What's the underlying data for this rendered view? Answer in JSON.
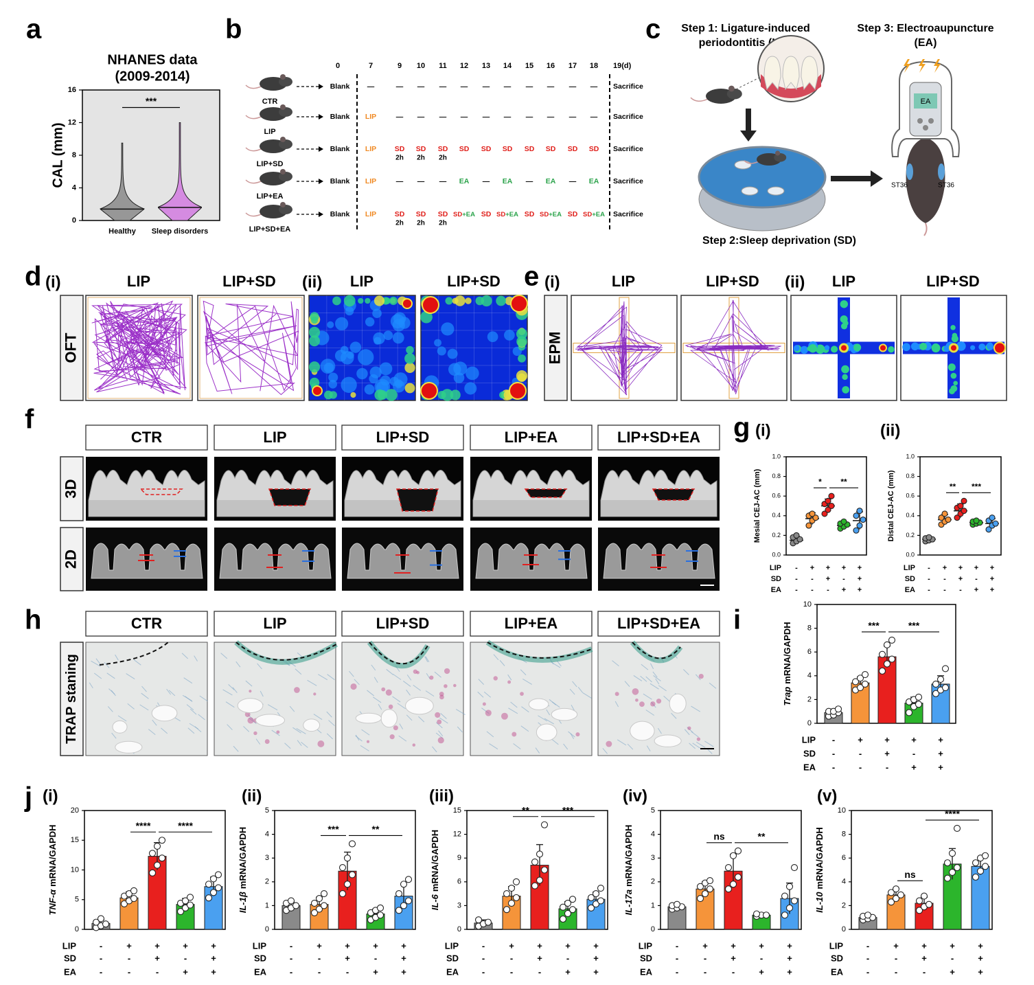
{
  "panel_letters": [
    "a",
    "b",
    "c",
    "d",
    "e",
    "f",
    "g",
    "h",
    "i",
    "j"
  ],
  "groups": {
    "names": [
      "CTR",
      "LIP",
      "LIP+SD",
      "LIP+EA",
      "LIP+SD+EA"
    ],
    "text_colors": [
      "#000000",
      "#f08a24",
      "#e0201b",
      "#2aa34a",
      "#4a86d9"
    ],
    "bar_colors": [
      "#8a8a8a",
      "#f5943a",
      "#e8201e",
      "#2cb52c",
      "#4aa0f0"
    ]
  },
  "conditions": {
    "rows": [
      "LIP",
      "SD",
      "EA"
    ],
    "marks": [
      [
        "-",
        "+",
        "+",
        "+",
        "+"
      ],
      [
        "-",
        "-",
        "+",
        "-",
        "+"
      ],
      [
        "-",
        "-",
        "-",
        "+",
        "+"
      ]
    ]
  },
  "timeline": {
    "days": [
      0,
      7,
      9,
      10,
      11,
      12,
      13,
      14,
      15,
      16,
      17,
      18,
      "19(d)"
    ],
    "rows": [
      {
        "cells": [
          [
            "Blank"
          ],
          [
            "—"
          ],
          [
            "—"
          ],
          [
            "—"
          ],
          [
            "—"
          ],
          [
            "—"
          ],
          [
            "—"
          ],
          [
            "—"
          ],
          [
            "—"
          ],
          [
            "—"
          ],
          [
            "—"
          ],
          [
            "—"
          ],
          [
            "Sacrifice"
          ]
        ]
      },
      {
        "cells": [
          [
            "Blank"
          ],
          [
            "LIP"
          ],
          [
            "—"
          ],
          [
            "—"
          ],
          [
            "—"
          ],
          [
            "—"
          ],
          [
            "—"
          ],
          [
            "—"
          ],
          [
            "—"
          ],
          [
            "—"
          ],
          [
            "—"
          ],
          [
            "—"
          ],
          [
            "Sacrifice"
          ]
        ]
      },
      {
        "cells": [
          [
            "Blank"
          ],
          [
            "LIP"
          ],
          [
            "SD"
          ],
          [
            "SD"
          ],
          [
            "SD"
          ],
          [
            "SD"
          ],
          [
            "SD"
          ],
          [
            "SD"
          ],
          [
            "SD"
          ],
          [
            "SD"
          ],
          [
            "SD"
          ],
          [
            "SD"
          ],
          [
            "Sacrifice"
          ]
        ],
        "notes": [
          null,
          null,
          "2h",
          "2h",
          "2h",
          null,
          null,
          null,
          null,
          null,
          null,
          null,
          null
        ]
      },
      {
        "cells": [
          [
            "Blank"
          ],
          [
            "LIP"
          ],
          [
            "—"
          ],
          [
            "—"
          ],
          [
            "—"
          ],
          [
            "EA"
          ],
          [
            "—"
          ],
          [
            "EA"
          ],
          [
            "—"
          ],
          [
            "EA"
          ],
          [
            "—"
          ],
          [
            "EA"
          ],
          [
            "Sacrifice"
          ]
        ]
      },
      {
        "cells": [
          [
            "Blank"
          ],
          [
            "LIP"
          ],
          [
            "SD"
          ],
          [
            "SD"
          ],
          [
            "SD"
          ],
          [
            "SD",
            "+EA"
          ],
          [
            "SD"
          ],
          [
            "SD",
            "+EA"
          ],
          [
            "SD"
          ],
          [
            "SD",
            "+EA"
          ],
          [
            "SD"
          ],
          [
            "SD",
            "+EA"
          ],
          [
            "Sacrifice"
          ]
        ],
        "notes": [
          null,
          null,
          "2h",
          "2h",
          "2h",
          null,
          null,
          null,
          null,
          null,
          null,
          null,
          null
        ]
      }
    ]
  },
  "diagram_c": {
    "step1": [
      "Step 1: Ligature-induced",
      "periodontitis (LIP)"
    ],
    "step2": "Step 2:Sleep deprivation (SD)",
    "step3": [
      "Step 3: Electroaupuncture",
      "(EA)"
    ],
    "device": "EA",
    "acupoints": [
      "ST36",
      "ST36"
    ]
  },
  "panel_d": {
    "test": "OFT",
    "parts": [
      {
        "label": "(i)",
        "titles": [
          "LIP",
          "LIP+SD"
        ]
      },
      {
        "label": "(ii)",
        "titles": [
          "LIP",
          "LIP+SD"
        ]
      }
    ]
  },
  "panel_e": {
    "test": "EPM",
    "parts": [
      {
        "label": "(i)",
        "titles": [
          "LIP",
          "LIP+SD"
        ]
      },
      {
        "label": "(ii)",
        "titles": [
          "LIP",
          "LIP+SD"
        ]
      }
    ]
  },
  "panel_f": {
    "rows": [
      "3D",
      "2D"
    ]
  },
  "panel_h": {
    "rows": [
      "TRAP staning"
    ]
  },
  "chart_data": [
    {
      "type": "violin",
      "title": [
        "NHANES data",
        "(2009-2014)"
      ],
      "ylabel": "CAL (mm)",
      "categories": [
        "Healthy",
        "Sleep disorders"
      ],
      "minima": [
        0,
        0
      ],
      "medians": [
        1.4,
        1.6
      ],
      "maxima": [
        9.5,
        12
      ],
      "colors": [
        "#8a8a8a",
        "#d27be0"
      ],
      "ylim": [
        0,
        16
      ],
      "yticks": [
        0,
        4,
        8,
        12,
        16
      ],
      "significance": [
        {
          "text": "***",
          "groups": [
            0,
            1
          ]
        }
      ]
    },
    {
      "type": "dot",
      "panel": "(i)",
      "ylabel": "Mesial CEJ-AC (mm)",
      "ylabel_color": "#e0201b",
      "values": [
        0.15,
        0.37,
        0.5,
        0.3,
        0.35
      ],
      "errors": [
        0.04,
        0.06,
        0.07,
        0.03,
        0.09
      ],
      "points": [
        [
          0.12,
          0.14,
          0.16,
          0.18,
          0.2
        ],
        [
          0.3,
          0.35,
          0.38,
          0.4,
          0.42
        ],
        [
          0.42,
          0.46,
          0.5,
          0.52,
          0.55,
          0.6
        ],
        [
          0.27,
          0.29,
          0.31,
          0.32,
          0.34
        ],
        [
          0.25,
          0.3,
          0.36,
          0.4,
          0.45
        ]
      ],
      "ylim": [
        0,
        1
      ],
      "yticks": [
        {
          "value": 0,
          "label": "0.0"
        },
        0.2,
        0.4,
        0.6,
        0.8,
        {
          "value": 1,
          "label": "1.0"
        }
      ],
      "significance": [
        {
          "text": "*",
          "groups": [
            1,
            2
          ]
        },
        {
          "text": "**",
          "groups": [
            2,
            4
          ]
        }
      ]
    },
    {
      "type": "dot",
      "panel": "(ii)",
      "ylabel": "Distal CEJ-AC (mm)",
      "ylabel_color": "#1f2fbf",
      "values": [
        0.16,
        0.36,
        0.45,
        0.33,
        0.32
      ],
      "errors": [
        0.02,
        0.05,
        0.07,
        0.02,
        0.05
      ],
      "points": [
        [
          0.14,
          0.15,
          0.16,
          0.17,
          0.18
        ],
        [
          0.31,
          0.34,
          0.36,
          0.38,
          0.42
        ],
        [
          0.38,
          0.42,
          0.45,
          0.48,
          0.5,
          0.55
        ],
        [
          0.31,
          0.32,
          0.33,
          0.34,
          0.35
        ],
        [
          0.26,
          0.3,
          0.32,
          0.35,
          0.38
        ]
      ],
      "ylim": [
        0,
        1
      ],
      "yticks": [
        {
          "value": 0,
          "label": "0.0"
        },
        0.2,
        0.4,
        0.6,
        0.8,
        {
          "value": 1,
          "label": "1.0"
        }
      ],
      "significance": [
        {
          "text": "**",
          "groups": [
            1,
            2
          ]
        },
        {
          "text": "***",
          "groups": [
            2,
            4
          ]
        }
      ]
    },
    {
      "type": "bar",
      "ylabel_gene": "Trap",
      "ylabel": "mRNA/GAPDH",
      "values": [
        0.9,
        3.4,
        5.6,
        1.7,
        3.3
      ],
      "errors": [
        0.3,
        0.5,
        0.9,
        0.5,
        0.7
      ],
      "points": [
        [
          0.6,
          0.7,
          0.9,
          1,
          1,
          1.2
        ],
        [
          2.8,
          3,
          3.3,
          3.5,
          3.8,
          4.1
        ],
        [
          4.4,
          5,
          5.4,
          5.8,
          6.6,
          7
        ],
        [
          0.9,
          1.4,
          1.6,
          1.8,
          2,
          2.2
        ],
        [
          2.5,
          2.8,
          3,
          3.3,
          3.7,
          4.6
        ]
      ],
      "ylim": [
        0,
        10
      ],
      "yticks": [
        0,
        2,
        4,
        6,
        8,
        10
      ],
      "significance": [
        {
          "text": "***",
          "groups": [
            1,
            2
          ]
        },
        {
          "text": "***",
          "groups": [
            2,
            4
          ]
        }
      ]
    },
    {
      "type": "bar",
      "panel": "(i)",
      "ylabel_gene": "TNF-α",
      "ylabel": "mRNA/GAPDH",
      "values": [
        1,
        5.3,
        12.3,
        4.2,
        7.2
      ],
      "errors": [
        0.6,
        1,
        2.3,
        1,
        1.6
      ],
      "points": [
        [
          0.3,
          0.6,
          0.9,
          1.2,
          1.8
        ],
        [
          4.3,
          4.8,
          5.2,
          5.6,
          6,
          6.5
        ],
        [
          9.5,
          10.8,
          12,
          12.8,
          14,
          15
        ],
        [
          3,
          3.6,
          4.1,
          4.4,
          4.8,
          5.4
        ],
        [
          5.3,
          6.2,
          7,
          7.6,
          8.5,
          9.2
        ]
      ],
      "ylim": [
        0,
        20
      ],
      "yticks": [
        0,
        5,
        10,
        15,
        20
      ],
      "significance": [
        {
          "text": "****",
          "groups": [
            1,
            2
          ]
        },
        {
          "text": "****",
          "groups": [
            2,
            4
          ]
        }
      ]
    },
    {
      "type": "bar",
      "panel": "(ii)",
      "ylabel_gene": "IL-1β",
      "ylabel": "mRNA/GAPDH",
      "values": [
        1,
        1.05,
        2.45,
        0.65,
        1.4
      ],
      "errors": [
        0.15,
        0.3,
        0.8,
        0.2,
        0.5
      ],
      "points": [
        [
          0.8,
          0.9,
          1,
          1.1,
          1.2
        ],
        [
          0.7,
          0.85,
          1,
          1.1,
          1.3,
          1.5
        ],
        [
          1.5,
          1.9,
          2.3,
          2.6,
          3,
          3.6
        ],
        [
          0.4,
          0.5,
          0.6,
          0.7,
          0.8,
          0.9
        ],
        [
          0.8,
          1,
          1.2,
          1.5,
          1.9,
          2.1
        ]
      ],
      "ylim": [
        0,
        5
      ],
      "yticks": [
        0,
        1,
        2,
        3,
        4,
        5
      ],
      "significance": [
        {
          "text": "***",
          "groups": [
            1,
            2
          ]
        },
        {
          "text": "**",
          "groups": [
            2,
            4
          ]
        }
      ]
    },
    {
      "type": "bar",
      "panel": "(iii)",
      "ylabel_gene": "IL-6",
      "ylabel": "mRNA/GAPDH",
      "values": [
        0.8,
        4.2,
        8.1,
        2.6,
        3.8
      ],
      "errors": [
        0.4,
        1.2,
        2.6,
        0.9,
        0.9
      ],
      "points": [
        [
          0.4,
          0.7,
          0.9,
          1.2
        ],
        [
          2.5,
          3.3,
          4,
          4.5,
          5.2,
          6
        ],
        [
          5.5,
          6.2,
          7.5,
          8.5,
          9.5,
          13.2
        ],
        [
          1.3,
          2,
          2.5,
          2.8,
          3.3,
          3.8
        ],
        [
          2.7,
          3.2,
          3.6,
          4,
          4.5,
          5.2
        ]
      ],
      "ylim": [
        0,
        15
      ],
      "yticks": [
        0,
        3,
        6,
        9,
        12,
        15
      ],
      "significance": [
        {
          "text": "**",
          "groups": [
            1,
            2
          ]
        },
        {
          "text": "***",
          "groups": [
            2,
            4
          ]
        }
      ]
    },
    {
      "type": "bar",
      "panel": "(iv)",
      "ylabel_gene": "IL-17a",
      "ylabel": "mRNA/GAPDH",
      "values": [
        0.95,
        1.7,
        2.45,
        0.6,
        1.3
      ],
      "errors": [
        0.1,
        0.3,
        0.7,
        0.05,
        0.65
      ],
      "points": [
        [
          0.85,
          0.9,
          0.95,
          1,
          1.05
        ],
        [
          1.3,
          1.5,
          1.7,
          1.8,
          1.95,
          2.05
        ],
        [
          1.7,
          1.9,
          2.2,
          2.6,
          3.1,
          3.3
        ],
        [
          0.55,
          0.6,
          0.6,
          0.65
        ],
        [
          0.6,
          0.9,
          1.2,
          1.4,
          1.8,
          2.6
        ]
      ],
      "ylim": [
        0,
        5
      ],
      "yticks": [
        0,
        1,
        2,
        3,
        4,
        5
      ],
      "significance": [
        {
          "text": "ns",
          "groups": [
            1,
            2
          ]
        },
        {
          "text": "**",
          "groups": [
            2,
            4
          ]
        }
      ]
    },
    {
      "type": "bar",
      "panel": "(v)",
      "ylabel_gene": "IL-10",
      "ylabel": "mRNA/GAPDH",
      "values": [
        1,
        2.9,
        2.2,
        5.5,
        5.3
      ],
      "errors": [
        0.2,
        0.5,
        0.5,
        1.3,
        0.7
      ],
      "points": [
        [
          0.8,
          0.9,
          1,
          1.1,
          1.2
        ],
        [
          2.3,
          2.6,
          2.9,
          3.1,
          3.4
        ],
        [
          1.6,
          1.9,
          2.1,
          2.4,
          2.8
        ],
        [
          4.3,
          4.8,
          5.2,
          5.6,
          6.4,
          8.5
        ],
        [
          4.4,
          4.9,
          5.3,
          5.6,
          6,
          6.2
        ]
      ],
      "ylim": [
        0,
        10
      ],
      "yticks": [
        0,
        2,
        4,
        6,
        8,
        10
      ],
      "significance": [
        {
          "text": "ns",
          "groups": [
            1,
            2
          ]
        },
        {
          "text": "****",
          "groups": [
            2,
            4
          ]
        }
      ]
    }
  ]
}
